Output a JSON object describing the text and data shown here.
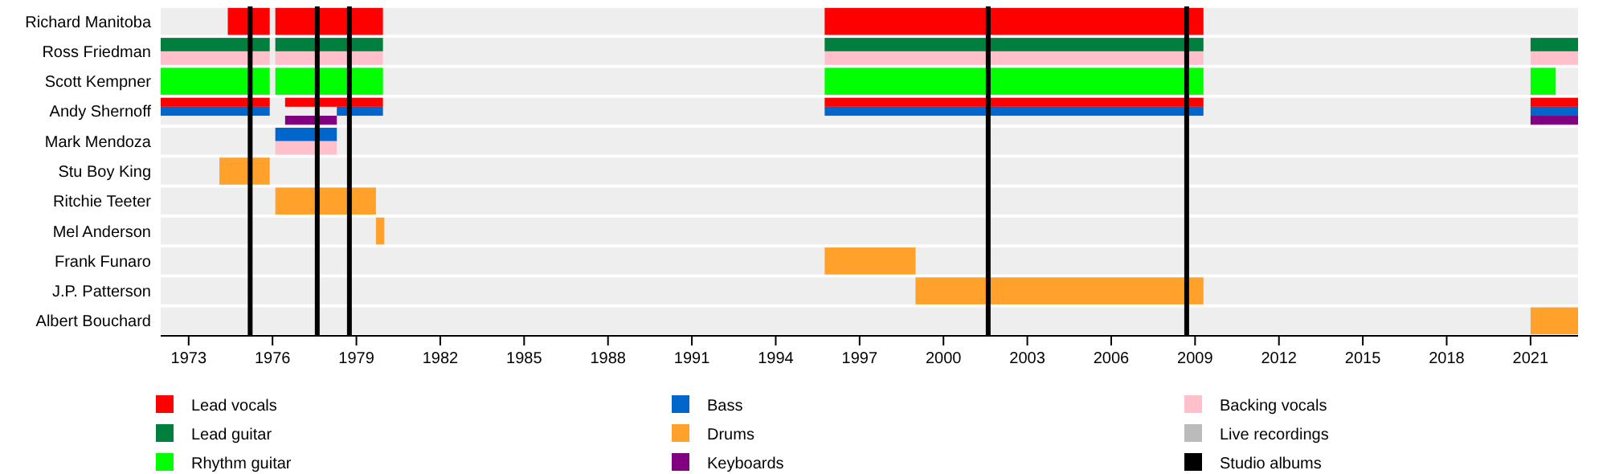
{
  "chart_data": {
    "type": "bar",
    "orientation": "horizontal",
    "legend": "bottom",
    "grid": false,
    "categories": [
      "Richard Manitoba",
      "Ross Friedman",
      "Scott Kempner",
      "Andy Shernoff",
      "Mark Mendoza",
      "Stu Boy King",
      "Ritchie Teeter",
      "Mel Anderson",
      "Frank Funaro",
      "J.P. Patterson",
      "Albert Bouchard"
    ],
    "xlim": [
      1972,
      2022.7
    ],
    "xticks": [
      1973,
      1976,
      1979,
      1982,
      1985,
      1988,
      1991,
      1994,
      1997,
      2000,
      2003,
      2006,
      2009,
      2012,
      2015,
      2018,
      2021
    ],
    "ref_lines": [
      {
        "axis": "x",
        "value": 1975.2,
        "label": "Studio albums",
        "color": "#000000"
      },
      {
        "axis": "x",
        "value": 1977.6,
        "color": "#000000"
      },
      {
        "axis": "x",
        "value": 1978.75,
        "color": "#000000"
      },
      {
        "axis": "x",
        "value": 2001.6,
        "color": "#000000"
      },
      {
        "axis": "x",
        "value": 2008.7,
        "color": "#000000"
      }
    ],
    "series": [
      {
        "name": "Lead vocals",
        "color": "#ff0000",
        "base": [
          1974.4,
          null,
          null,
          1972,
          null,
          null,
          null,
          null,
          null,
          null,
          null
        ],
        "values": [
          1.5,
          null,
          null,
          3.9,
          null,
          null,
          null,
          null,
          null,
          null,
          null
        ]
      },
      {
        "color": "#ff0000",
        "base": [
          1976.1,
          null,
          null,
          1976.45,
          null,
          null,
          null,
          null,
          null,
          null,
          null
        ],
        "values": [
          3.85,
          null,
          null,
          3.5,
          null,
          null,
          null,
          null,
          null,
          null,
          null
        ]
      },
      {
        "color": "#ff0000",
        "base": [
          1995.75,
          null,
          null,
          1995.75,
          null,
          null,
          null,
          null,
          null,
          null,
          null
        ],
        "values": [
          13.55,
          null,
          null,
          13.55,
          null,
          null,
          null,
          null,
          null,
          null,
          null
        ]
      },
      {
        "color": "#ff0000",
        "base": [
          null,
          null,
          null,
          2021,
          null,
          null,
          null,
          null,
          null,
          null,
          null
        ],
        "values": [
          null,
          null,
          null,
          1.7,
          null,
          null,
          null,
          null,
          null,
          null,
          null
        ]
      },
      {
        "name": "Lead guitar",
        "color": "#007f3f",
        "base": [
          null,
          1972,
          null,
          null,
          null,
          null,
          null,
          null,
          null,
          null,
          null
        ],
        "values": [
          null,
          3.9,
          null,
          null,
          null,
          null,
          null,
          null,
          null,
          null,
          null
        ]
      },
      {
        "color": "#007f3f",
        "base": [
          null,
          1976.1,
          null,
          null,
          null,
          null,
          null,
          null,
          null,
          null,
          null
        ],
        "values": [
          null,
          3.85,
          null,
          null,
          null,
          null,
          null,
          null,
          null,
          null,
          null
        ]
      },
      {
        "color": "#007f3f",
        "base": [
          null,
          1995.75,
          null,
          null,
          null,
          null,
          null,
          null,
          null,
          null,
          null
        ],
        "values": [
          null,
          13.55,
          null,
          null,
          null,
          null,
          null,
          null,
          null,
          null,
          null
        ]
      },
      {
        "color": "#007f3f",
        "base": [
          null,
          2021,
          null,
          null,
          null,
          null,
          null,
          null,
          null,
          null,
          null
        ],
        "values": [
          null,
          1.7,
          null,
          null,
          null,
          null,
          null,
          null,
          null,
          null,
          null
        ]
      },
      {
        "name": "Rhythm guitar",
        "color": "#00ff00",
        "base": [
          null,
          null,
          1972,
          null,
          null,
          null,
          null,
          null,
          null,
          null,
          null
        ],
        "values": [
          null,
          null,
          3.9,
          null,
          null,
          null,
          null,
          null,
          null,
          null,
          null
        ]
      },
      {
        "color": "#00ff00",
        "base": [
          null,
          null,
          1976.1,
          null,
          null,
          null,
          null,
          null,
          null,
          null,
          null
        ],
        "values": [
          null,
          null,
          3.85,
          null,
          null,
          null,
          null,
          null,
          null,
          null,
          null
        ]
      },
      {
        "color": "#00ff00",
        "base": [
          null,
          null,
          1995.75,
          null,
          null,
          null,
          null,
          null,
          null,
          null,
          null
        ],
        "values": [
          null,
          null,
          13.55,
          null,
          null,
          null,
          null,
          null,
          null,
          null,
          null
        ]
      },
      {
        "color": "#00ff00",
        "base": [
          null,
          null,
          2021,
          null,
          null,
          null,
          null,
          null,
          null,
          null,
          null
        ],
        "values": [
          null,
          null,
          0.9,
          null,
          null,
          null,
          null,
          null,
          null,
          null,
          null
        ]
      },
      {
        "name": "Bass",
        "color": "#0066cc",
        "base": [
          null,
          null,
          null,
          1972,
          1976.1,
          null,
          null,
          null,
          null,
          null,
          null
        ],
        "values": [
          null,
          null,
          null,
          3.9,
          2.2,
          null,
          null,
          null,
          null,
          null,
          null
        ]
      },
      {
        "color": "#0066cc",
        "base": [
          null,
          null,
          null,
          1978.3,
          null,
          null,
          null,
          null,
          null,
          null,
          null
        ],
        "values": [
          null,
          null,
          null,
          1.65,
          null,
          null,
          null,
          null,
          null,
          null,
          null
        ]
      },
      {
        "color": "#0066cc",
        "base": [
          null,
          null,
          null,
          1995.75,
          null,
          null,
          null,
          null,
          null,
          null,
          null
        ],
        "values": [
          null,
          null,
          null,
          13.55,
          null,
          null,
          null,
          null,
          null,
          null,
          null
        ]
      },
      {
        "color": "#0066cc",
        "base": [
          null,
          null,
          null,
          2021,
          null,
          null,
          null,
          null,
          null,
          null,
          null
        ],
        "values": [
          null,
          null,
          null,
          1.7,
          null,
          null,
          null,
          null,
          null,
          null,
          null
        ]
      },
      {
        "name": "Drums",
        "color": "#ffa12b",
        "base": [
          null,
          null,
          null,
          null,
          null,
          1974.1,
          1976.1,
          null,
          1995.75,
          null,
          2021
        ],
        "values": [
          null,
          null,
          null,
          null,
          null,
          1.8,
          3.6,
          null,
          3.25,
          null,
          1.7
        ]
      },
      {
        "color": "#ffa12b",
        "base": [
          null,
          null,
          null,
          null,
          null,
          null,
          null,
          1979.7,
          null,
          1999,
          null
        ],
        "values": [
          null,
          null,
          null,
          null,
          null,
          null,
          null,
          0.3,
          null,
          10.3,
          null
        ]
      },
      {
        "name": "Keyboards",
        "color": "#800080",
        "base": [
          null,
          null,
          null,
          1976.45,
          null,
          null,
          null,
          null,
          null,
          null,
          null
        ],
        "values": [
          null,
          null,
          null,
          1.85,
          null,
          null,
          null,
          null,
          null,
          null,
          null
        ]
      },
      {
        "color": "#800080",
        "base": [
          null,
          null,
          null,
          2021,
          null,
          null,
          null,
          null,
          null,
          null,
          null
        ],
        "values": [
          null,
          null,
          null,
          1.7,
          null,
          null,
          null,
          null,
          null,
          null,
          null
        ]
      },
      {
        "name": "Backing vocals",
        "color": "#ffc0cb",
        "base": [
          null,
          1972,
          null,
          null,
          1976.1,
          null,
          null,
          null,
          null,
          null,
          null
        ],
        "values": [
          null,
          3.9,
          null,
          null,
          2.2,
          null,
          null,
          null,
          null,
          null,
          null
        ]
      },
      {
        "color": "#ffc0cb",
        "base": [
          null,
          1976.1,
          null,
          null,
          null,
          null,
          null,
          null,
          null,
          null,
          null
        ],
        "values": [
          null,
          3.85,
          null,
          null,
          null,
          null,
          null,
          null,
          null,
          null,
          null
        ]
      },
      {
        "color": "#ffc0cb",
        "base": [
          null,
          1995.75,
          null,
          null,
          null,
          null,
          null,
          null,
          null,
          null,
          null
        ],
        "values": [
          null,
          13.55,
          null,
          null,
          null,
          null,
          null,
          null,
          null,
          null,
          null
        ]
      },
      {
        "color": "#ffc0cb",
        "base": [
          null,
          2021,
          null,
          null,
          null,
          null,
          null,
          null,
          null,
          null,
          null
        ],
        "values": [
          null,
          1.7,
          null,
          null,
          null,
          null,
          null,
          null,
          null,
          null,
          null
        ]
      },
      {
        "name": "Live recordings",
        "color": "#bbbbbb",
        "values": [
          null,
          null,
          null,
          null,
          null,
          null,
          null,
          null,
          null,
          null,
          null
        ]
      }
    ]
  }
}
